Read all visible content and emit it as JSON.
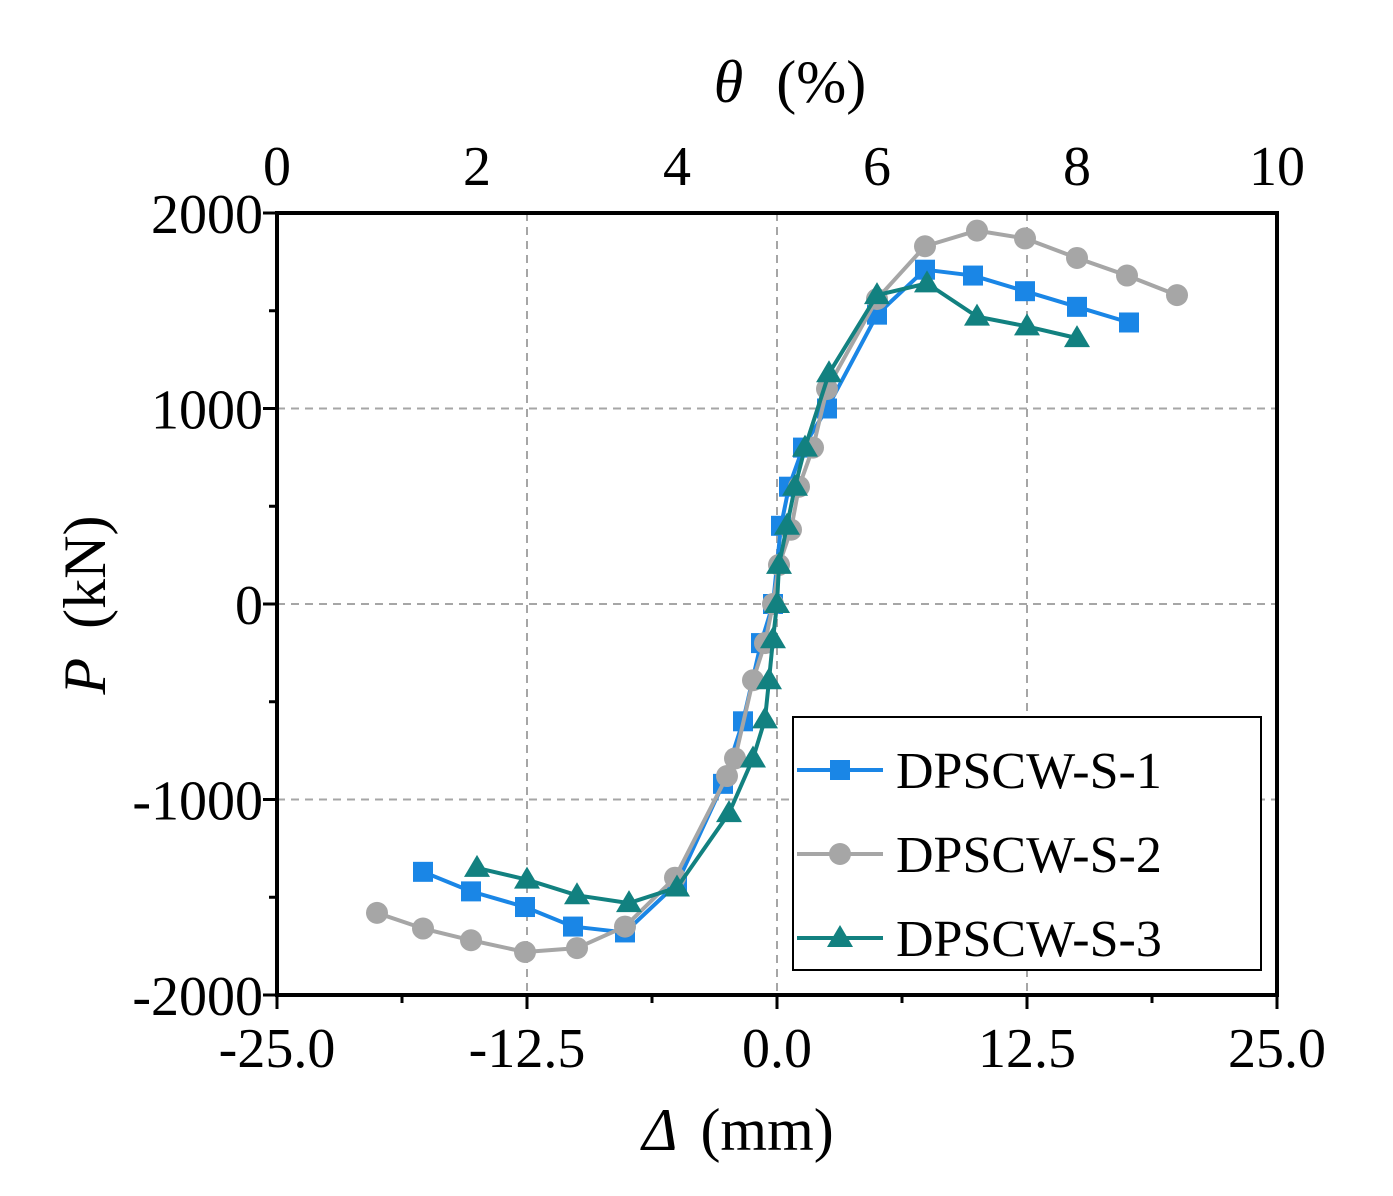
{
  "chart_data": {
    "type": "line",
    "x_axis": {
      "label_symbol": "Δ",
      "label_unit": "(mm)",
      "range": [
        -25,
        25
      ],
      "major_ticks": [
        -25,
        -12.5,
        0,
        12.5,
        25
      ],
      "tick_labels": [
        "-25.0",
        "-12.5",
        "0.0",
        "12.5",
        "25.0"
      ],
      "minor_step": 6.25
    },
    "x2_axis": {
      "label_symbol": "θ",
      "label_unit": "(%)",
      "range": [
        0,
        10
      ],
      "major_ticks": [
        0,
        2,
        4,
        6,
        8,
        10
      ],
      "tick_labels": [
        "0",
        "2",
        "4",
        "6",
        "8",
        "10"
      ]
    },
    "y_axis": {
      "label_symbol": "P",
      "label_unit": "(kN)",
      "range": [
        -2000,
        2000
      ],
      "major_ticks": [
        -2000,
        -1000,
        0,
        1000,
        2000
      ],
      "tick_labels": [
        "-2000",
        "-1000",
        "0",
        "1000",
        "2000"
      ],
      "minor_step": 500
    },
    "grid": true,
    "legend_position": "bottom-right",
    "series": [
      {
        "name": "DPSCW-S-1",
        "color": "#1a86e6",
        "marker": "square",
        "points": [
          [
            -17.7,
            -1370
          ],
          [
            -15.3,
            -1470
          ],
          [
            -12.6,
            -1550
          ],
          [
            -10.2,
            -1650
          ],
          [
            -7.6,
            -1680
          ],
          [
            -5.0,
            -1430
          ],
          [
            -2.7,
            -920
          ],
          [
            -1.7,
            -600
          ],
          [
            -0.8,
            -200
          ],
          [
            -0.2,
            0
          ],
          [
            0.2,
            400
          ],
          [
            0.6,
            600
          ],
          [
            1.3,
            800
          ],
          [
            2.5,
            1000
          ],
          [
            5.0,
            1480
          ],
          [
            7.4,
            1710
          ],
          [
            9.8,
            1680
          ],
          [
            12.4,
            1600
          ],
          [
            15.0,
            1520
          ],
          [
            17.6,
            1440
          ]
        ]
      },
      {
        "name": "DPSCW-S-2",
        "color": "#a6a6a6",
        "marker": "circle",
        "points": [
          [
            -20.0,
            -1580
          ],
          [
            -17.7,
            -1660
          ],
          [
            -15.3,
            -1720
          ],
          [
            -12.6,
            -1780
          ],
          [
            -10.0,
            -1760
          ],
          [
            -7.6,
            -1650
          ],
          [
            -5.1,
            -1400
          ],
          [
            -2.5,
            -880
          ],
          [
            -2.1,
            -790
          ],
          [
            -1.2,
            -390
          ],
          [
            -0.6,
            -200
          ],
          [
            -0.2,
            0
          ],
          [
            0.1,
            200
          ],
          [
            0.7,
            380
          ],
          [
            1.1,
            600
          ],
          [
            1.8,
            800
          ],
          [
            2.5,
            1100
          ],
          [
            5.0,
            1560
          ],
          [
            7.4,
            1830
          ],
          [
            10.0,
            1910
          ],
          [
            12.4,
            1870
          ],
          [
            15.0,
            1770
          ],
          [
            17.5,
            1680
          ],
          [
            20.0,
            1580
          ]
        ]
      },
      {
        "name": "DPSCW-S-3",
        "color": "#128180",
        "marker": "triangle",
        "points": [
          [
            -15.0,
            -1350
          ],
          [
            -12.5,
            -1410
          ],
          [
            -10.0,
            -1490
          ],
          [
            -7.4,
            -1530
          ],
          [
            -5.0,
            -1450
          ],
          [
            -2.4,
            -1070
          ],
          [
            -1.2,
            -790
          ],
          [
            -0.6,
            -590
          ],
          [
            -0.4,
            -390
          ],
          [
            -0.2,
            -180
          ],
          [
            0.0,
            0
          ],
          [
            0.1,
            200
          ],
          [
            0.5,
            400
          ],
          [
            0.9,
            600
          ],
          [
            1.4,
            800
          ],
          [
            2.6,
            1180
          ],
          [
            5.0,
            1580
          ],
          [
            7.5,
            1640
          ],
          [
            10.0,
            1470
          ],
          [
            12.5,
            1420
          ],
          [
            15.0,
            1360
          ]
        ]
      }
    ]
  }
}
